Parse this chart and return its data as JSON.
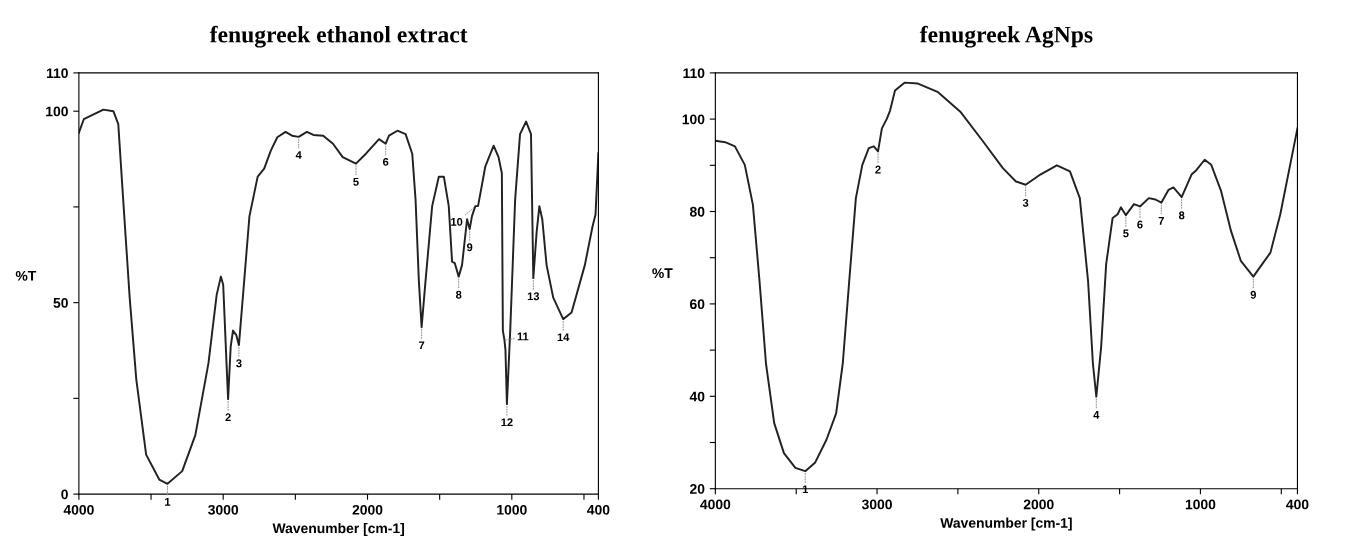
{
  "chart_data": [
    {
      "type": "line",
      "title": "fenugreek ethanol extract",
      "xlabel": "Wavenumber [cm-1]",
      "ylabel": "%T",
      "xlim": [
        4000,
        400
      ],
      "ylim": [
        0,
        110
      ],
      "xticks": [
        4000,
        {
          "value": 3500,
          "label": null
        },
        3000,
        {
          "value": 2500,
          "label": null
        },
        2000,
        {
          "value": 1500,
          "label": null
        },
        1000,
        {
          "value": 500,
          "label": null
        },
        400
      ],
      "yticks": [
        0,
        {
          "value": 25,
          "label": null
        },
        50,
        {
          "value": 75,
          "label": null
        },
        100,
        110
      ],
      "grid": false,
      "legend": false,
      "marker": "none",
      "line_style": "solid",
      "series": [
        {
          "color": "#222222",
          "x": [
            4000,
            3966,
            3830,
            3761,
            3727,
            3693,
            3648,
            3602,
            3534,
            3443,
            3386,
            3284,
            3193,
            3102,
            3045,
            3016,
            3000,
            2977,
            2966,
            2948,
            2932,
            2909,
            2891,
            2864,
            2818,
            2761,
            2716,
            2670,
            2625,
            2568,
            2523,
            2477,
            2420,
            2375,
            2307,
            2239,
            2172,
            2080,
            2011,
            1920,
            1874,
            1851,
            1793,
            1736,
            1690,
            1667,
            1644,
            1625,
            1598,
            1552,
            1506,
            1471,
            1437,
            1414,
            1395,
            1368,
            1345,
            1310,
            1292,
            1276,
            1253,
            1234,
            1184,
            1126,
            1092,
            1069,
            1062,
            1051,
            1044,
            1034,
            1011,
            977,
            943,
            901,
            867,
            851,
            828,
            809,
            789,
            759,
            713,
            644,
            586,
            494,
            440,
            420,
            400
          ],
          "values": [
            94.4,
            97.9,
            100.4,
            100,
            96.6,
            76.9,
            51.3,
            29.9,
            10.3,
            3.8,
            2.7,
            6,
            15.4,
            34.2,
            52.1,
            56.8,
            54.7,
            34.2,
            24.8,
            38.5,
            42.7,
            41.5,
            38.9,
            51.3,
            72.6,
            82.9,
            85,
            89.7,
            93.2,
            94.6,
            93.6,
            93.3,
            94.6,
            93.8,
            93.6,
            91.5,
            88,
            86.3,
            88.9,
            92.7,
            91.5,
            93.6,
            94.9,
            94,
            88.9,
            76.9,
            55.6,
            43.6,
            55.6,
            75.2,
            82.9,
            82.9,
            75.2,
            60.7,
            60.3,
            56.8,
            59.8,
            71.8,
            69.2,
            72.6,
            75.2,
            75.2,
            85.5,
            91,
            88,
            83.8,
            42.7,
            40.2,
            37.6,
            23.5,
            42.7,
            76.9,
            94,
            97.3,
            94,
            56.4,
            68.4,
            75.2,
            71.8,
            59.8,
            51.3,
            45.7,
            47.4,
            59.8,
            70,
            73,
            89
          ]
        }
      ],
      "annotations": [
        {
          "text": "1",
          "x": 3386,
          "y": 2.7
        },
        {
          "text": "2",
          "x": 2966,
          "y": 24.8
        },
        {
          "text": "3",
          "x": 2891,
          "y": 38.9
        },
        {
          "text": "4",
          "x": 2477,
          "y": 93.3
        },
        {
          "text": "5",
          "x": 2080,
          "y": 86.3
        },
        {
          "text": "6",
          "x": 1874,
          "y": 91.5
        },
        {
          "text": "7",
          "x": 1625,
          "y": 43.6
        },
        {
          "text": "8",
          "x": 1368,
          "y": 56.8
        },
        {
          "text": "9",
          "x": 1292,
          "y": 69.2
        },
        {
          "text": "10",
          "x": 1253,
          "y": 75.2
        },
        {
          "text": "11",
          "x": 1051,
          "y": 40.2
        },
        {
          "text": "12",
          "x": 1034,
          "y": 23.5
        },
        {
          "text": "13",
          "x": 851,
          "y": 56.4
        },
        {
          "text": "14",
          "x": 644,
          "y": 45.7
        }
      ]
    },
    {
      "type": "line",
      "title": "fenugreek AgNps",
      "xlabel": "Wavenumber [cm-1]",
      "ylabel": "%T",
      "xlim": [
        4000,
        400
      ],
      "ylim": [
        20,
        110
      ],
      "xticks": [
        4000,
        {
          "value": 3500,
          "label": null
        },
        3000,
        {
          "value": 2500,
          "label": null
        },
        2000,
        {
          "value": 1500,
          "label": null
        },
        1000,
        {
          "value": 500,
          "label": null
        },
        400
      ],
      "yticks": [
        20,
        {
          "value": 30,
          "label": null
        },
        40,
        {
          "value": 50,
          "label": null
        },
        60,
        {
          "value": 70,
          "label": null
        },
        80,
        {
          "value": 90,
          "label": null
        },
        100,
        110
      ],
      "grid": false,
      "legend": false,
      "marker": "none",
      "line_style": "solid",
      "series": [
        {
          "color": "#222222",
          "x": [
            4000,
            3939,
            3879,
            3818,
            3768,
            3727,
            3687,
            3636,
            3576,
            3505,
            3444,
            3384,
            3313,
            3253,
            3212,
            3172,
            3131,
            3091,
            3051,
            3020,
            2994,
            2970,
            2939,
            2919,
            2889,
            2828,
            2747,
            2626,
            2485,
            2343,
            2222,
            2141,
            2081,
            1990,
            1888,
            1807,
            1746,
            1695,
            1665,
            1644,
            1614,
            1583,
            1543,
            1512,
            1492,
            1461,
            1411,
            1374,
            1319,
            1278,
            1242,
            1197,
            1167,
            1116,
            1055,
            1024,
            974,
            933,
            872,
            811,
            750,
            673,
            618,
            567,
            506,
            445,
            400
          ],
          "values": [
            95.3,
            95,
            94.1,
            90.1,
            81.5,
            65,
            47.1,
            34.2,
            27.7,
            24.5,
            23.8,
            25.6,
            30.6,
            36.3,
            47.1,
            65,
            82.9,
            90.1,
            93.7,
            94.1,
            93,
            98,
            100.1,
            101.9,
            106.2,
            107.9,
            107.7,
            105.9,
            101.6,
            95.1,
            89.4,
            86.5,
            85.8,
            88,
            90,
            88.7,
            82.9,
            65,
            47.1,
            39.9,
            50.7,
            68.6,
            78.6,
            79.4,
            80.9,
            79.2,
            81.6,
            81.1,
            82.9,
            82.6,
            81.9,
            84.7,
            85.2,
            83.1,
            88,
            89,
            91.2,
            90.1,
            84.4,
            75.8,
            69.3,
            65.9,
            68.6,
            71.1,
            79.4,
            90.1,
            98
          ]
        }
      ],
      "annotations": [
        {
          "text": "1",
          "x": 3444,
          "y": 23.8
        },
        {
          "text": "2",
          "x": 2994,
          "y": 93
        },
        {
          "text": "3",
          "x": 2081,
          "y": 85.8
        },
        {
          "text": "4",
          "x": 1644,
          "y": 39.9
        },
        {
          "text": "5",
          "x": 1461,
          "y": 79.2
        },
        {
          "text": "6",
          "x": 1374,
          "y": 81.1
        },
        {
          "text": "7",
          "x": 1242,
          "y": 81.9
        },
        {
          "text": "8",
          "x": 1116,
          "y": 83.1
        },
        {
          "text": "9",
          "x": 673,
          "y": 65.9
        }
      ]
    }
  ]
}
